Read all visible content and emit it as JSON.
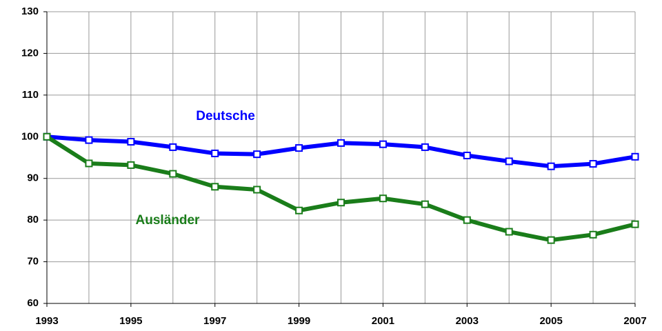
{
  "chart_data": {
    "type": "line",
    "x": [
      1993,
      1994,
      1995,
      1996,
      1997,
      1998,
      1999,
      2000,
      2001,
      2002,
      2003,
      2004,
      2005,
      2006,
      2007
    ],
    "series": [
      {
        "name": "Deutsche",
        "color": "#0000ff",
        "values": [
          100,
          99.2,
          98.8,
          97.5,
          96,
          95.8,
          97.3,
          98.5,
          98.2,
          97.5,
          95.5,
          94.1,
          92.9,
          93.5,
          95.2
        ]
      },
      {
        "name": "Ausländer",
        "color": "#1a7d1a",
        "values": [
          100,
          93.6,
          93.2,
          91.1,
          88,
          87.3,
          82.3,
          84.2,
          85.2,
          83.8,
          80,
          77.2,
          75.2,
          76.5,
          79
        ]
      }
    ],
    "xlim": [
      1993,
      2007
    ],
    "xticks": [
      1993,
      1995,
      1997,
      1999,
      2001,
      2003,
      2005,
      2007
    ],
    "ylim": [
      60,
      130
    ],
    "yticks": [
      60,
      70,
      80,
      90,
      100,
      110,
      120,
      130
    ],
    "grid": true,
    "legend": "inline"
  }
}
